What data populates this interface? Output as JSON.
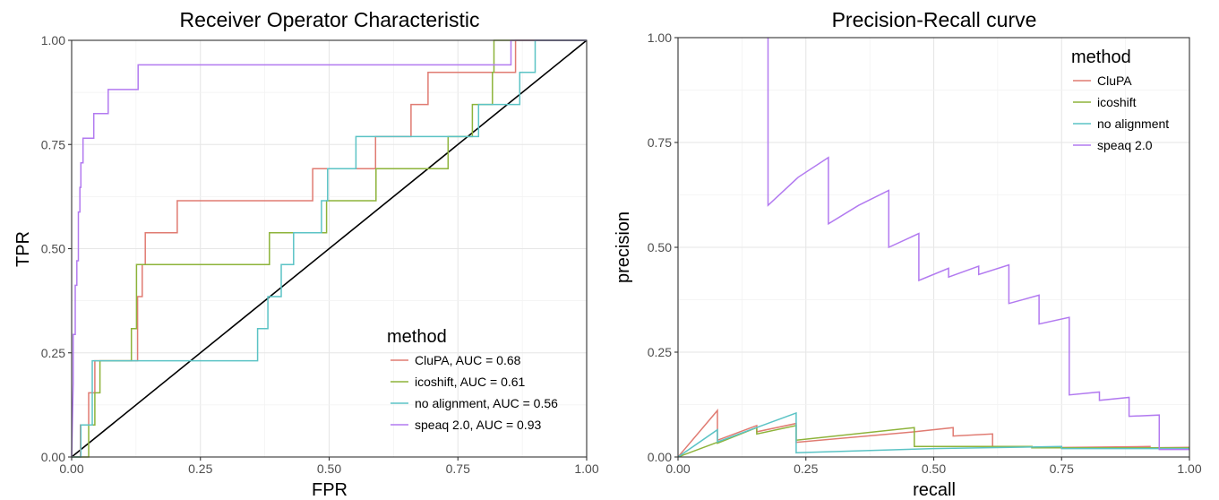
{
  "chart_data": [
    {
      "type": "line",
      "title": "Receiver Operator Characteristic",
      "xlabel": "FPR",
      "ylabel": "TPR",
      "xlim": [
        0,
        1
      ],
      "ylim": [
        0,
        1
      ],
      "x_ticks": [
        "0.00",
        "0.25",
        "0.50",
        "0.75",
        "1.00"
      ],
      "y_ticks": [
        "0.00",
        "0.25",
        "0.50",
        "0.75",
        "1.00"
      ],
      "grid": true,
      "legend": {
        "title": "method",
        "placement": "bottom-right",
        "entries": [
          "CluPA, AUC = 0.68",
          "icoshift, AUC = 0.61",
          "no alignment, AUC = 0.56",
          "speaq 2.0, AUC = 0.93"
        ]
      },
      "reference_line": {
        "x": [
          0,
          1
        ],
        "y": [
          0,
          1
        ],
        "color": "#000000"
      },
      "series": [
        {
          "name": "CluPA, AUC = 0.68",
          "color": "#E07B72",
          "x": [
            0,
            0.017,
            0.017,
            0.033,
            0.033,
            0.045,
            0.045,
            0.057,
            0.057,
            0.128,
            0.128,
            0.137,
            0.137,
            0.143,
            0.143,
            0.205,
            0.205,
            0.468,
            0.468,
            0.59,
            0.59,
            0.659,
            0.659,
            0.692,
            0.692,
            0.862,
            0.862,
            0.89,
            0.89,
            1
          ],
          "y": [
            0,
            0,
            0.077,
            0.077,
            0.154,
            0.154,
            0.231,
            0.231,
            0.231,
            0.231,
            0.385,
            0.385,
            0.462,
            0.462,
            0.538,
            0.538,
            0.615,
            0.615,
            0.692,
            0.692,
            0.769,
            0.769,
            0.846,
            0.846,
            0.923,
            0.923,
            1,
            1,
            1,
            1
          ]
        },
        {
          "name": "icoshift, AUC = 0.61",
          "color": "#8DB33A",
          "x": [
            0,
            0.033,
            0.033,
            0.045,
            0.045,
            0.055,
            0.055,
            0.116,
            0.116,
            0.126,
            0.126,
            0.384,
            0.384,
            0.495,
            0.495,
            0.591,
            0.591,
            0.731,
            0.731,
            0.778,
            0.778,
            0.817,
            0.817,
            0.82,
            0.82,
            1
          ],
          "y": [
            0,
            0,
            0.077,
            0.077,
            0.154,
            0.154,
            0.231,
            0.231,
            0.308,
            0.308,
            0.462,
            0.462,
            0.538,
            0.538,
            0.615,
            0.615,
            0.692,
            0.692,
            0.769,
            0.769,
            0.846,
            0.846,
            0.923,
            0.923,
            1,
            1
          ]
        },
        {
          "name": "no alignment, AUC = 0.56",
          "color": "#5BC3C5",
          "x": [
            0,
            0.018,
            0.018,
            0.04,
            0.04,
            0.361,
            0.361,
            0.381,
            0.381,
            0.407,
            0.407,
            0.431,
            0.431,
            0.485,
            0.485,
            0.497,
            0.497,
            0.552,
            0.552,
            0.79,
            0.79,
            0.87,
            0.87,
            0.9,
            0.9,
            1
          ],
          "y": [
            0,
            0,
            0.077,
            0.077,
            0.231,
            0.231,
            0.308,
            0.308,
            0.385,
            0.385,
            0.462,
            0.462,
            0.538,
            0.538,
            0.615,
            0.615,
            0.692,
            0.692,
            0.769,
            0.769,
            0.846,
            0.846,
            0.923,
            0.923,
            1,
            1
          ]
        },
        {
          "name": "speaq 2.0, AUC = 0.93",
          "color": "#B27AF0",
          "x": [
            0,
            0.003,
            0.003,
            0.007,
            0.007,
            0.01,
            0.01,
            0.013,
            0.013,
            0.016,
            0.016,
            0.018,
            0.018,
            0.022,
            0.022,
            0.025,
            0.025,
            0.043,
            0.043,
            0.071,
            0.071,
            0.083,
            0.083,
            0.129,
            0.129,
            0.853,
            0.853,
            1
          ],
          "y": [
            0,
            0.176,
            0.294,
            0.294,
            0.412,
            0.412,
            0.471,
            0.471,
            0.588,
            0.588,
            0.647,
            0.647,
            0.706,
            0.706,
            0.765,
            0.765,
            0.765,
            0.765,
            0.824,
            0.824,
            0.882,
            0.882,
            0.882,
            0.882,
            0.941,
            0.941,
            1,
            1
          ]
        }
      ]
    },
    {
      "type": "line",
      "title": "Precision-Recall curve",
      "xlabel": "recall",
      "ylabel": "precision",
      "xlim": [
        0,
        1
      ],
      "ylim": [
        0,
        1
      ],
      "x_ticks": [
        "0.00",
        "0.25",
        "0.50",
        "0.75",
        "1.00"
      ],
      "y_ticks": [
        "0.00",
        "0.25",
        "0.50",
        "0.75",
        "1.00"
      ],
      "grid": true,
      "legend": {
        "title": "method",
        "placement": "top-right",
        "entries": [
          "CluPA",
          "icoshift",
          "no alignment",
          "speaq 2.0"
        ]
      },
      "series": [
        {
          "name": "CluPA",
          "color": "#E07B72",
          "x": [
            0,
            0.077,
            0.077,
            0.154,
            0.154,
            0.231,
            0.231,
            0.462,
            0.462,
            0.538,
            0.538,
            0.615,
            0.615,
            0.692,
            0.692,
            0.923,
            0.923,
            1
          ],
          "y": [
            0,
            0.111,
            0.04,
            0.075,
            0.06,
            0.08,
            0.035,
            0.06,
            0.06,
            0.07,
            0.05,
            0.055,
            0.024,
            0.025,
            0.022,
            0.025,
            0.022,
            0.023
          ]
        },
        {
          "name": "icoshift",
          "color": "#8DB33A",
          "x": [
            0,
            0.077,
            0.077,
            0.154,
            0.154,
            0.231,
            0.231,
            0.462,
            0.462,
            0.692,
            0.692,
            1
          ],
          "y": [
            0,
            0.035,
            0.033,
            0.07,
            0.055,
            0.075,
            0.04,
            0.07,
            0.025,
            0.025,
            0.022,
            0.022
          ]
        },
        {
          "name": "no alignment",
          "color": "#5BC3C5",
          "x": [
            0,
            0.077,
            0.077,
            0.231,
            0.231,
            0.5,
            0.5,
            0.75,
            0.75,
            1
          ],
          "y": [
            0,
            0.065,
            0.036,
            0.105,
            0.01,
            0.02,
            0.02,
            0.025,
            0.02,
            0.02
          ]
        },
        {
          "name": "speaq 2.0",
          "color": "#B27AF0",
          "x": [
            0.176,
            0.176,
            0.235,
            0.294,
            0.294,
            0.353,
            0.412,
            0.412,
            0.471,
            0.471,
            0.529,
            0.529,
            0.588,
            0.588,
            0.647,
            0.647,
            0.706,
            0.706,
            0.765,
            0.765,
            0.824,
            0.824,
            0.882,
            0.882,
            0.941,
            0.941,
            1
          ],
          "y": [
            1.0,
            0.6,
            0.667,
            0.714,
            0.556,
            0.6,
            0.636,
            0.5,
            0.533,
            0.421,
            0.45,
            0.429,
            0.455,
            0.435,
            0.458,
            0.366,
            0.386,
            0.317,
            0.333,
            0.148,
            0.155,
            0.135,
            0.142,
            0.097,
            0.1,
            0.018,
            0.018
          ]
        }
      ]
    }
  ]
}
